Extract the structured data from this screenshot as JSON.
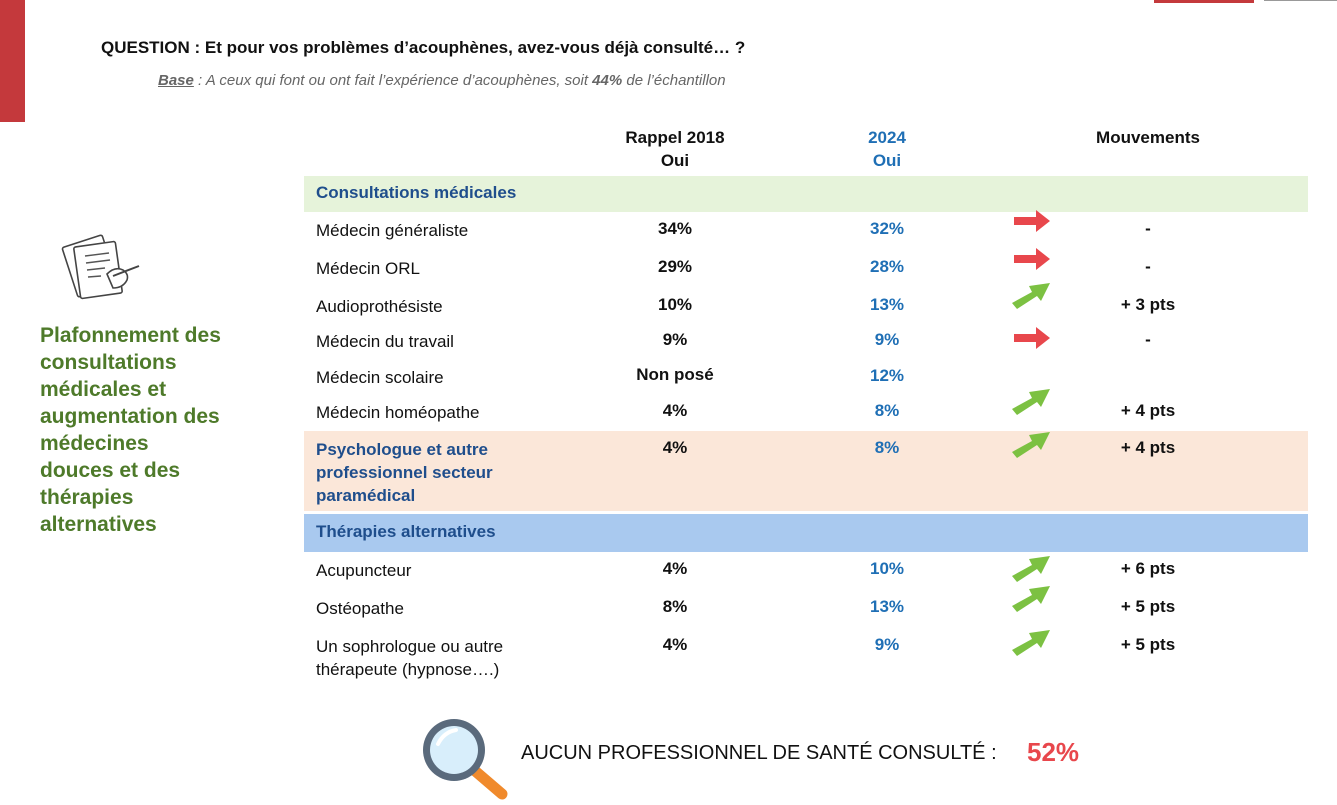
{
  "question": "QUESTION : Et pour vos problèmes d’acouphènes, avez-vous déjà consulté… ?",
  "base": {
    "label": "Base",
    "text_before": " : A ceux qui font ou ont fait l’expérience d’acouphènes, soit ",
    "pct": "44%",
    "text_after": " de l’échantillon"
  },
  "headers": {
    "col_2018_line1": "Rappel 2018",
    "col_2018_line2": "Oui",
    "col_2024_line1": "2024",
    "col_2024_line2": "Oui",
    "col_mouvements": "Mouvements"
  },
  "sections": {
    "consultations": "Consultations médicales",
    "alternatives": "Thérapies alternatives"
  },
  "rows": [
    {
      "label": "Médecin généraliste",
      "v2018": "34%",
      "v2024": "32%",
      "movement": "-",
      "trend": "stable"
    },
    {
      "label": "Médecin ORL",
      "v2018": "29%",
      "v2024": "28%",
      "movement": "-",
      "trend": "stable"
    },
    {
      "label": "Audioprothésiste",
      "v2018": "10%",
      "v2024": "13%",
      "movement": "+ 3 pts",
      "trend": "up"
    },
    {
      "label": "Médecin du travail",
      "v2018": "9%",
      "v2024": "9%",
      "movement": "-",
      "trend": "stable"
    },
    {
      "label": "Médecin scolaire",
      "v2018": "Non posé",
      "v2024": "12%",
      "movement": "",
      "trend": "none"
    },
    {
      "label": "Médecin homéopathe",
      "v2018": "4%",
      "v2024": "8%",
      "movement": "+ 4 pts",
      "trend": "up"
    },
    {
      "label_line1": "Psychologue et autre",
      "label_line2": "professionnel secteur",
      "label_line3": "paramédical",
      "v2018": "4%",
      "v2024": "8%",
      "movement": "+ 4 pts",
      "trend": "up"
    },
    {
      "label": "Acupuncteur",
      "v2018": "4%",
      "v2024": "10%",
      "movement": "+ 6 pts",
      "trend": "up"
    },
    {
      "label": "Ostéopathe",
      "v2018": "8%",
      "v2024": "13%",
      "movement": "+ 5 pts",
      "trend": "up"
    },
    {
      "label_line1": "Un sophrologue ou autre",
      "label_line2": "thérapeute (hypnose….)",
      "v2018": "4%",
      "v2024": "9%",
      "movement": "+ 5 pts",
      "trend": "up"
    }
  ],
  "headline": {
    "line1": "Plafonnement des",
    "line2": "consultations",
    "line3": "médicales et",
    "line4": "augmentation des",
    "line5": "médecines",
    "line6": "douces et des",
    "line7": "thérapies",
    "line8": "alternatives"
  },
  "bottom": {
    "text": "AUCUN PROFESSIONNEL DE SANTÉ CONSULTÉ : ",
    "value": "52%"
  },
  "colors": {
    "accent_red": "#c4393c",
    "blue_2024": "#1f6fb5",
    "section_blue": "#1f4e8c",
    "headline_green": "#4e7a2a",
    "arrow_up_green": "#7cc142",
    "arrow_stable_red": "#e8474c",
    "band_green": "#e6f3da",
    "band_peach": "#fbe7d9",
    "band_blue": "#a9c9ef"
  },
  "icons": {
    "document": "document-writing-icon",
    "magnifier": "magnifying-glass-icon",
    "trend_up": "arrow-up-right-icon",
    "trend_stable": "arrow-right-icon"
  }
}
